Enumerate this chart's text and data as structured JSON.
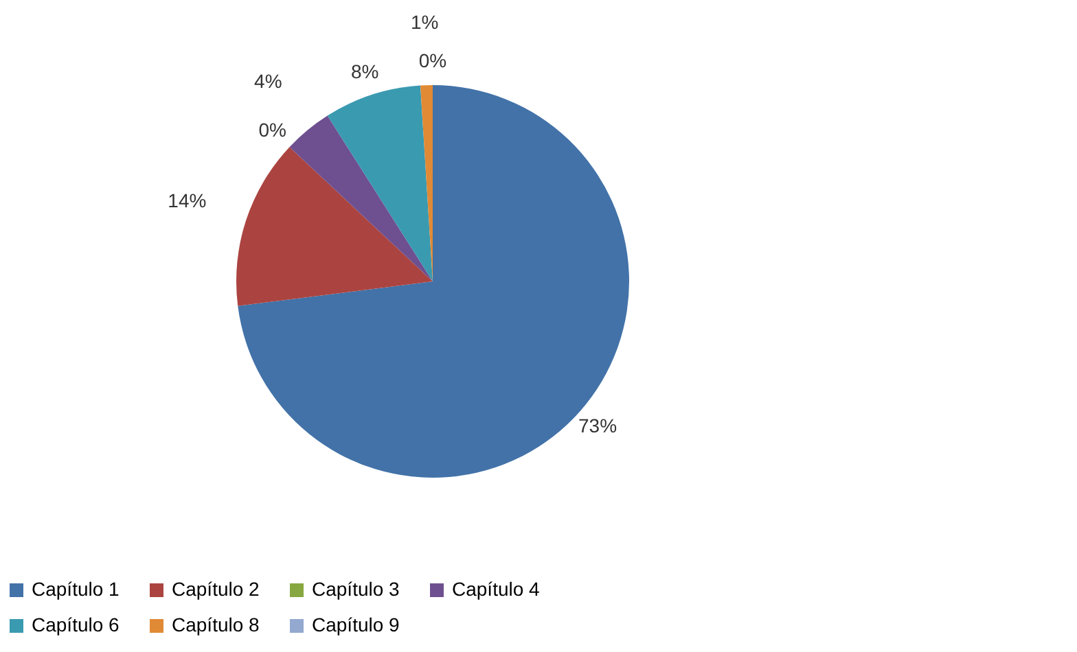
{
  "chart_data": {
    "type": "pie",
    "categories": [
      "Capítulo 1",
      "Capítulo 2",
      "Capítulo 3",
      "Capítulo 4",
      "Capítulo 6",
      "Capítulo 8",
      "Capítulo 9"
    ],
    "values": [
      73,
      14,
      0,
      4,
      8,
      1,
      0
    ],
    "colors": [
      "#4272a8",
      "#ab4440",
      "#87a840",
      "#6e5090",
      "#3a9ab0",
      "#e08a35",
      "#93a9d0"
    ],
    "value_labels": [
      "73%",
      "14%",
      "0%",
      "4%",
      "8%",
      "1%",
      "0%"
    ],
    "legend": "bottom"
  }
}
